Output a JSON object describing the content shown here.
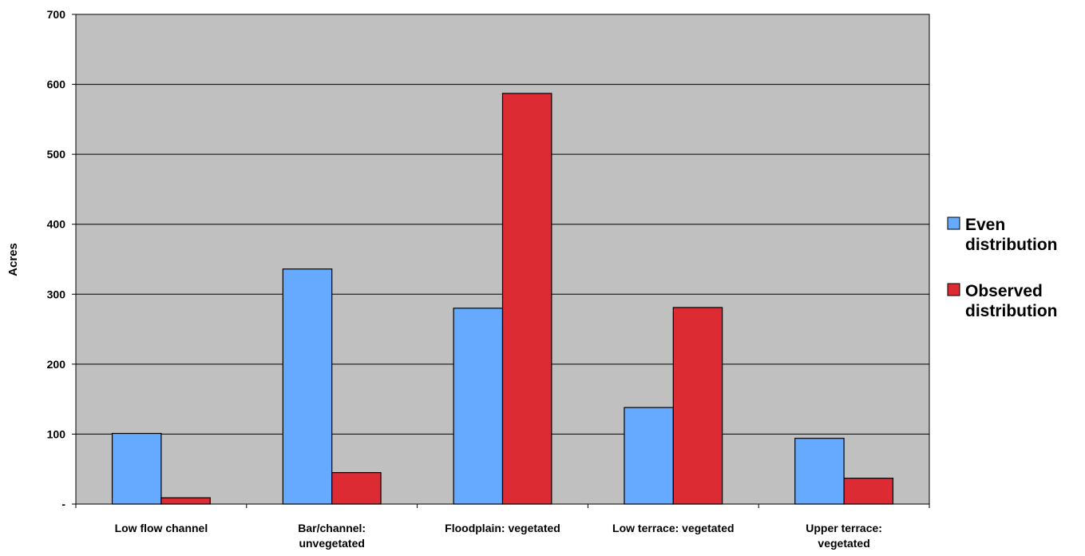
{
  "chart_data": {
    "type": "bar",
    "title": "",
    "xlabel": "",
    "ylabel": "Acres",
    "ylim": [
      0,
      700
    ],
    "y_ticks": [
      {
        "value": 0,
        "label": "-"
      },
      {
        "value": 100,
        "label": "100"
      },
      {
        "value": 200,
        "label": "200"
      },
      {
        "value": 300,
        "label": "300"
      },
      {
        "value": 400,
        "label": "400"
      },
      {
        "value": 500,
        "label": "500"
      },
      {
        "value": 600,
        "label": "600"
      },
      {
        "value": 700,
        "label": "700"
      }
    ],
    "grid": true,
    "legend_position": "right",
    "categories": [
      [
        "Low flow channel"
      ],
      [
        "Bar/channel:",
        "unvegetated"
      ],
      [
        "Floodplain: vegetated"
      ],
      [
        "Low terrace: vegetated"
      ],
      [
        "Upper terrace:",
        "vegetated"
      ]
    ],
    "series": [
      {
        "name": [
          "Even",
          "distribution"
        ],
        "color": "#66aaff",
        "values": [
          101,
          336,
          280,
          138,
          94
        ]
      },
      {
        "name": [
          "Observed",
          "distribution"
        ],
        "color": "#dd2b33",
        "values": [
          9,
          45,
          587,
          281,
          37
        ]
      }
    ],
    "plot_background": "#c0c0c0"
  }
}
